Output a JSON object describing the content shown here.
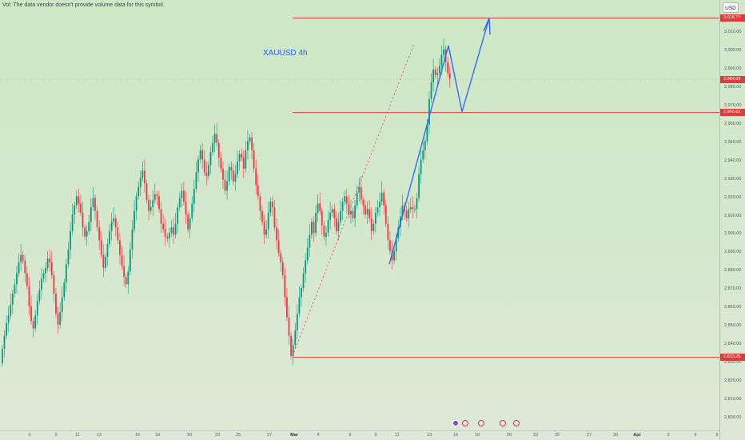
{
  "chart_data": {
    "type": "candlestick",
    "title": "XAUUSD 4h",
    "symbol": "XAUUSD",
    "interval": "4h",
    "currency": "USD",
    "ylim": [
      2795,
      3018
    ],
    "y_ticks": [
      "3,010.00",
      "3,000.00",
      "2,990.00",
      "2,980.00",
      "2,970.00",
      "2,960.00",
      "2,950.00",
      "2,940.00",
      "2,930.00",
      "2,920.00",
      "2,910.00",
      "2,900.00",
      "2,890.00",
      "2,880.00",
      "2,870.00",
      "2,860.00",
      "2,850.00",
      "2,840.00",
      "2,830.00",
      "2,820.00",
      "2,810.00",
      "2,800.00"
    ],
    "x_ticks": [
      "6",
      "9",
      "11",
      "13",
      "16",
      "18",
      "20",
      "23",
      "25",
      "27",
      "Mar",
      "4",
      "6",
      "9",
      "11",
      "13",
      "16",
      "18",
      "20",
      "23",
      "25",
      "27",
      "30",
      "Apr",
      "3",
      "6",
      "8"
    ],
    "price_labels": [
      {
        "name": "upper-target",
        "value": "3,018.??",
        "price": 3018
      },
      {
        "name": "current-price",
        "value": "2,984.69",
        "price": 2984.69
      },
      {
        "name": "support-level",
        "value": "2,966.62",
        "price": 2966.62
      },
      {
        "name": "swing-low",
        "value": "2,833.25",
        "price": 2833.25
      }
    ],
    "horizontal_lines": [
      3018,
      2966.62,
      2833.25
    ],
    "projection_path": [
      {
        "t": "Mar 10",
        "price": 2884
      },
      {
        "t": "Mar 14",
        "price": 3003
      },
      {
        "t": "Mar 17",
        "price": 2967
      },
      {
        "t": "Mar 19",
        "price": 3018
      }
    ],
    "trend_line_dotted": [
      {
        "t": "Feb 28",
        "price": 2834
      },
      {
        "t": "Mar 12",
        "price": 3003
      }
    ],
    "events": [
      "flash",
      "us",
      "us",
      "us",
      "us"
    ],
    "close_series": [
      2838,
      2845,
      2852,
      2856,
      2862,
      2868,
      2873,
      2879,
      2885,
      2889,
      2886,
      2879,
      2872,
      2861,
      2853,
      2849,
      2856,
      2864,
      2870,
      2876,
      2879,
      2882,
      2887,
      2885,
      2878,
      2868,
      2857,
      2851,
      2858,
      2866,
      2874,
      2884,
      2892,
      2902,
      2911,
      2916,
      2921,
      2917,
      2912,
      2904,
      2899,
      2902,
      2907,
      2915,
      2920,
      2913,
      2904,
      2897,
      2889,
      2882,
      2888,
      2895,
      2902,
      2907,
      2909,
      2904,
      2897,
      2889,
      2883,
      2877,
      2873,
      2880,
      2892,
      2903,
      2913,
      2921,
      2926,
      2931,
      2935,
      2928,
      2919,
      2913,
      2915,
      2919,
      2922,
      2921,
      2914,
      2906,
      2903,
      2899,
      2898,
      2901,
      2904,
      2900,
      2906,
      2915,
      2920,
      2924,
      2918,
      2911,
      2903,
      2909,
      2917,
      2925,
      2934,
      2941,
      2946,
      2941,
      2934,
      2932,
      2938,
      2945,
      2950,
      2955,
      2950,
      2942,
      2936,
      2930,
      2924,
      2929,
      2937,
      2935,
      2929,
      2933,
      2940,
      2944,
      2942,
      2936,
      2946,
      2951,
      2953,
      2946,
      2936,
      2927,
      2921,
      2913,
      2907,
      2900,
      2903,
      2912,
      2918,
      2915,
      2904,
      2897,
      2890,
      2885,
      2878,
      2866,
      2855,
      2845,
      2834,
      2840,
      2848,
      2857,
      2866,
      2871,
      2879,
      2886,
      2893,
      2900,
      2907,
      2901,
      2912,
      2917,
      2913,
      2905,
      2899,
      2901,
      2908,
      2912,
      2914,
      2909,
      2902,
      2907,
      2913,
      2918,
      2921,
      2917,
      2911,
      2913,
      2909,
      2916,
      2923,
      2926,
      2919,
      2916,
      2911,
      2914,
      2909,
      2902,
      2906,
      2912,
      2915,
      2918,
      2923,
      2916,
      2906,
      2897,
      2891,
      2886,
      2891,
      2898,
      2904,
      2910,
      2916,
      2913,
      2909,
      2914,
      2915,
      2914,
      2914,
      2920,
      2933,
      2941,
      2946,
      2951,
      2960,
      2974,
      2983,
      2990,
      2987,
      2988,
      2992,
      2998,
      3001,
      2994,
      2988,
      2985
    ]
  }
}
